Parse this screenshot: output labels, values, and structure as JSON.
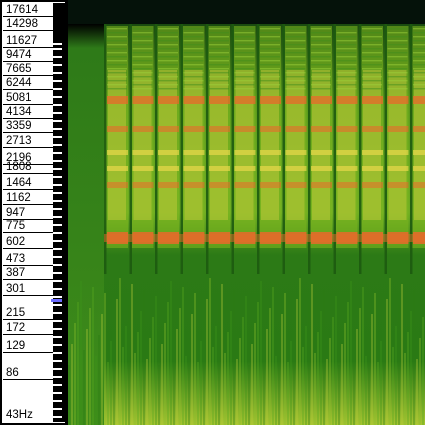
{
  "app": {
    "colors": {
      "background": "#000000",
      "axis_label_bg": "#ffffff",
      "axis_text": "#000000",
      "highlight_key": "#6a6aff",
      "spectrum_low": "#1f6e12",
      "spectrum_mid": "#7fb81f",
      "spectrum_high": "#e8d84a",
      "spectrum_peak": "#e86a2a"
    }
  },
  "frequency_axis": {
    "labels": [
      "17614",
      "14298",
      "11627",
      "9474",
      "7665",
      "6244",
      "5081",
      "4134",
      "3359",
      "2713",
      "2196",
      "1808",
      "1464",
      "1162",
      "947",
      "775",
      "602",
      "473",
      "387",
      "301",
      "215",
      "172",
      "129",
      "86",
      "43Hz"
    ]
  }
}
